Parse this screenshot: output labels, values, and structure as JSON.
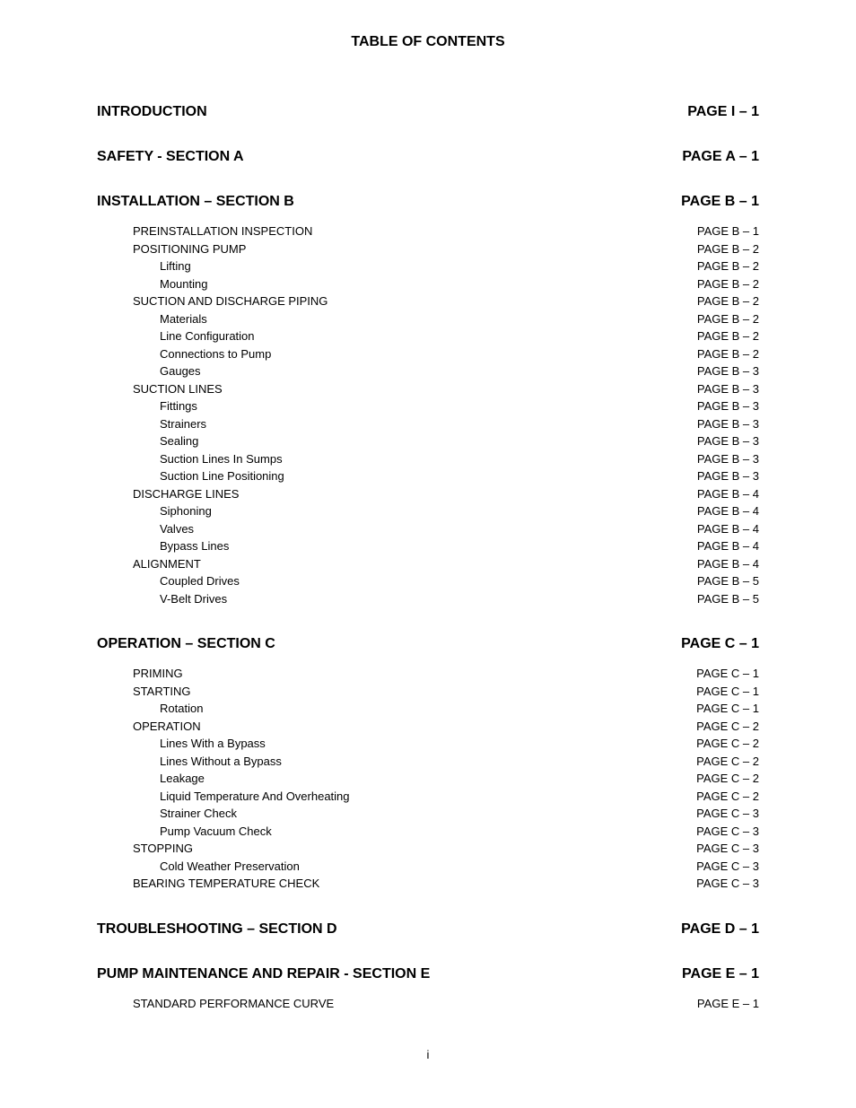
{
  "title": "TABLE OF CONTENTS",
  "page_number": "i",
  "sections": [
    {
      "type": "head",
      "label": "INTRODUCTION",
      "page": "PAGE I – 1",
      "first": true
    },
    {
      "type": "head",
      "label": "SAFETY - SECTION A",
      "page": "PAGE A – 1"
    },
    {
      "type": "head",
      "label": "INSTALLATION – SECTION B",
      "page": "PAGE B – 1"
    },
    {
      "type": "sub",
      "indent": 1,
      "label": "PREINSTALLATION INSPECTION",
      "page": "PAGE B – 1"
    },
    {
      "type": "sub",
      "indent": 1,
      "label": "POSITIONING PUMP",
      "page": "PAGE B – 2"
    },
    {
      "type": "sub",
      "indent": 2,
      "label": "Lifting",
      "page": "PAGE B – 2"
    },
    {
      "type": "sub",
      "indent": 2,
      "label": "Mounting",
      "page": "PAGE B – 2"
    },
    {
      "type": "sub",
      "indent": 1,
      "label": "SUCTION AND DISCHARGE PIPING",
      "page": "PAGE B – 2"
    },
    {
      "type": "sub",
      "indent": 2,
      "label": "Materials",
      "page": "PAGE B – 2"
    },
    {
      "type": "sub",
      "indent": 2,
      "label": "Line Configuration",
      "page": "PAGE B – 2"
    },
    {
      "type": "sub",
      "indent": 2,
      "label": "Connections to Pump",
      "page": "PAGE B – 2"
    },
    {
      "type": "sub",
      "indent": 2,
      "label": "Gauges",
      "page": "PAGE B – 3"
    },
    {
      "type": "sub",
      "indent": 1,
      "label": "SUCTION LINES",
      "page": "PAGE B – 3"
    },
    {
      "type": "sub",
      "indent": 2,
      "label": "Fittings",
      "page": "PAGE B – 3"
    },
    {
      "type": "sub",
      "indent": 2,
      "label": "Strainers",
      "page": "PAGE B – 3"
    },
    {
      "type": "sub",
      "indent": 2,
      "label": "Sealing",
      "page": "PAGE B – 3"
    },
    {
      "type": "sub",
      "indent": 2,
      "label": "Suction Lines In Sumps",
      "page": "PAGE B – 3"
    },
    {
      "type": "sub",
      "indent": 2,
      "label": "Suction Line Positioning",
      "page": "PAGE B – 3"
    },
    {
      "type": "sub",
      "indent": 1,
      "label": "DISCHARGE LINES",
      "page": "PAGE B – 4"
    },
    {
      "type": "sub",
      "indent": 2,
      "label": "Siphoning",
      "page": "PAGE B – 4"
    },
    {
      "type": "sub",
      "indent": 2,
      "label": "Valves",
      "page": "PAGE B – 4"
    },
    {
      "type": "sub",
      "indent": 2,
      "label": "Bypass Lines",
      "page": "PAGE B – 4"
    },
    {
      "type": "sub",
      "indent": 1,
      "label": "ALIGNMENT",
      "page": "PAGE B – 4"
    },
    {
      "type": "sub",
      "indent": 2,
      "label": "Coupled Drives",
      "page": "PAGE B – 5"
    },
    {
      "type": "sub",
      "indent": 2,
      "label": "V-Belt Drives",
      "page": "PAGE B – 5"
    },
    {
      "type": "head",
      "label": "OPERATION – SECTION C",
      "page": "PAGE C – 1"
    },
    {
      "type": "sub",
      "indent": 1,
      "label": "PRIMING",
      "page": "PAGE C – 1"
    },
    {
      "type": "sub",
      "indent": 1,
      "label": "STARTING",
      "page": "PAGE C – 1"
    },
    {
      "type": "sub",
      "indent": 2,
      "label": "Rotation",
      "page": "PAGE C – 1"
    },
    {
      "type": "sub",
      "indent": 1,
      "label": "OPERATION",
      "page": "PAGE C – 2"
    },
    {
      "type": "sub",
      "indent": 2,
      "label": "Lines With a Bypass",
      "page": "PAGE C – 2"
    },
    {
      "type": "sub",
      "indent": 2,
      "label": "Lines Without a Bypass",
      "page": "PAGE C – 2"
    },
    {
      "type": "sub",
      "indent": 2,
      "label": "Leakage",
      "page": "PAGE C – 2"
    },
    {
      "type": "sub",
      "indent": 2,
      "label": "Liquid Temperature And Overheating",
      "page": "PAGE C – 2"
    },
    {
      "type": "sub",
      "indent": 2,
      "label": "Strainer Check",
      "page": "PAGE C – 3"
    },
    {
      "type": "sub",
      "indent": 2,
      "label": "Pump Vacuum Check",
      "page": "PAGE C – 3"
    },
    {
      "type": "sub",
      "indent": 1,
      "label": "STOPPING",
      "page": "PAGE C – 3"
    },
    {
      "type": "sub",
      "indent": 2,
      "label": "Cold Weather Preservation",
      "page": "PAGE C – 3"
    },
    {
      "type": "sub",
      "indent": 1,
      "label": "BEARING TEMPERATURE CHECK",
      "page": "PAGE C – 3"
    },
    {
      "type": "head",
      "label": "TROUBLESHOOTING – SECTION D",
      "page": "PAGE D – 1"
    },
    {
      "type": "head",
      "label": "PUMP MAINTENANCE AND REPAIR - SECTION E",
      "page": "PAGE E – 1"
    },
    {
      "type": "sub",
      "indent": 1,
      "label": "STANDARD PERFORMANCE CURVE",
      "page": "PAGE E – 1"
    }
  ]
}
